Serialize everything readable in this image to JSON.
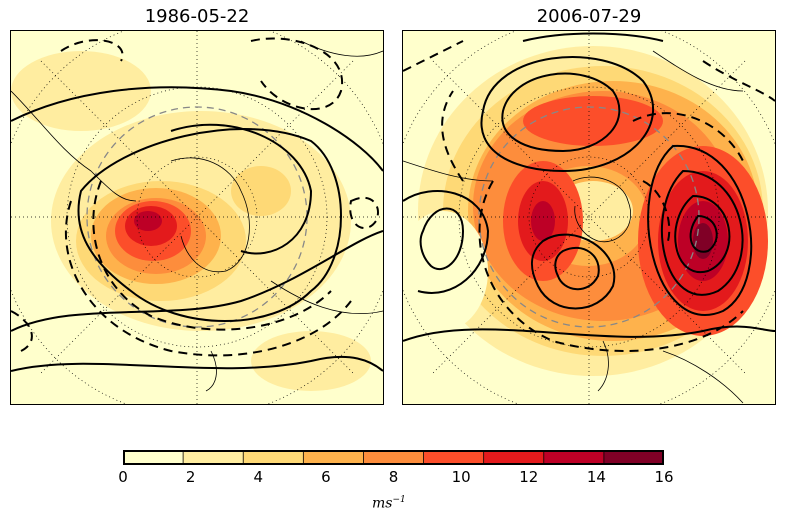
{
  "panels": [
    {
      "title": "1986-05-22"
    },
    {
      "title": "2006-07-29"
    }
  ],
  "colorbar": {
    "ticks": [
      "0",
      "2",
      "4",
      "6",
      "8",
      "10",
      "12",
      "14",
      "16"
    ],
    "levels": [
      0,
      2,
      4,
      6,
      8,
      10,
      12,
      14,
      16
    ],
    "colors": [
      "#ffffcc",
      "#ffeda0",
      "#fed976",
      "#feb24c",
      "#fd8d3c",
      "#fc4e2a",
      "#e31a1c",
      "#bd0026",
      "#800026"
    ],
    "units_base": "ms",
    "units_exp": "−1"
  },
  "contour_style": {
    "positive": "solid",
    "negative": "dashed",
    "line_color": "#000000",
    "reference_circle_color": "#888888"
  }
}
